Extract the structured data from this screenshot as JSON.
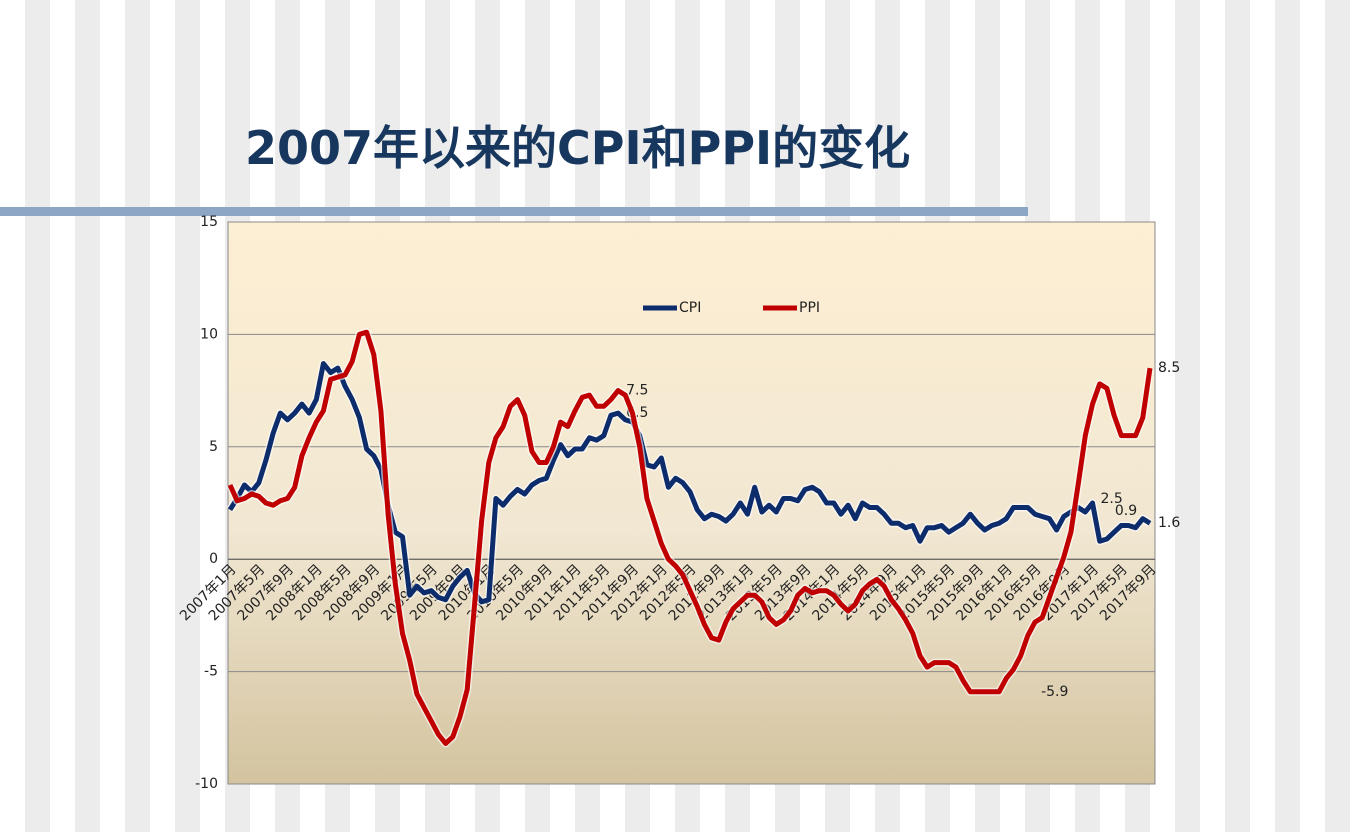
{
  "title": "2007年以来的CPI和PPI的变化",
  "chart_data": {
    "type": "line",
    "categories": [
      "2007年1月",
      null,
      null,
      null,
      "2007年5月",
      null,
      null,
      null,
      "2007年9月",
      null,
      null,
      null,
      "2008年1月",
      null,
      null,
      null,
      "2008年5月",
      null,
      null,
      null,
      "2008年9月",
      null,
      null,
      null,
      "2009年1月",
      null,
      null,
      null,
      "2009年5月",
      null,
      null,
      null,
      "2009年9月",
      null,
      null,
      null,
      "2010年1月",
      null,
      null,
      null,
      "2010年5月",
      null,
      null,
      null,
      "2010年9月",
      null,
      null,
      null,
      "2011年1月",
      null,
      null,
      null,
      "2011年5月",
      null,
      null,
      null,
      "2011年9月",
      null,
      null,
      null,
      "2012年1月",
      null,
      null,
      null,
      "2012年5月",
      null,
      null,
      null,
      "2012年9月",
      null,
      null,
      null,
      "2013年1月",
      null,
      null,
      null,
      "2013年5月",
      null,
      null,
      null,
      "2013年9月",
      null,
      null,
      null,
      "2014年1月",
      null,
      null,
      null,
      "2014年5月",
      null,
      null,
      null,
      "2014年9月",
      null,
      null,
      null,
      "2015年1月",
      null,
      null,
      null,
      "2015年5月",
      null,
      null,
      null,
      "2015年9月",
      null,
      null,
      null,
      "2016年1月",
      null,
      null,
      null,
      "2016年5月",
      null,
      null,
      null,
      "2016年9月",
      null,
      null,
      null,
      "2017年1月",
      null,
      null,
      null,
      "2017年5月",
      null,
      null,
      null,
      "2017年9月"
    ],
    "series": [
      {
        "name": "CPI",
        "color": "#0d2c6b",
        "labeled": [
          54,
          120,
          122,
          128
        ],
        "values": [
          2.2,
          2.7,
          3.3,
          3.0,
          3.4,
          4.4,
          5.6,
          6.5,
          6.2,
          6.5,
          6.9,
          6.5,
          7.1,
          8.7,
          8.3,
          8.5,
          7.7,
          7.1,
          6.3,
          4.9,
          4.6,
          4.0,
          2.4,
          1.2,
          1.0,
          -1.6,
          -1.2,
          -1.5,
          -1.4,
          -1.7,
          -1.8,
          -1.2,
          -0.8,
          -0.5,
          -1.5,
          -1.9,
          -1.8,
          2.7,
          2.4,
          2.8,
          3.1,
          2.9,
          3.3,
          3.5,
          3.6,
          4.4,
          5.1,
          4.6,
          4.9,
          4.9,
          5.4,
          5.3,
          5.5,
          6.4,
          6.5,
          6.2,
          6.1,
          5.5,
          4.2,
          4.1,
          4.5,
          3.2,
          3.6,
          3.4,
          3.0,
          2.2,
          1.8,
          2.0,
          1.9,
          1.7,
          2.0,
          2.5,
          2.0,
          3.2,
          2.1,
          2.4,
          2.1,
          2.7,
          2.7,
          2.6,
          3.1,
          3.2,
          3.0,
          2.5,
          2.5,
          2.0,
          2.4,
          1.8,
          2.5,
          2.3,
          2.3,
          2.0,
          1.6,
          1.6,
          1.4,
          1.5,
          0.8,
          1.4,
          1.4,
          1.5,
          1.2,
          1.4,
          1.6,
          2.0,
          1.6,
          1.3,
          1.5,
          1.6,
          1.8,
          2.3,
          2.3,
          2.3,
          2.0,
          1.9,
          1.8,
          1.3,
          1.9,
          2.1,
          2.3,
          2.1,
          2.5,
          0.8,
          0.9,
          1.2,
          1.5,
          1.5,
          1.4,
          1.8,
          1.6
        ]
      },
      {
        "name": "PPI",
        "color": "#c00000",
        "labeled": [
          54,
          107,
          128
        ],
        "values": [
          3.3,
          2.6,
          2.7,
          2.9,
          2.8,
          2.5,
          2.4,
          2.6,
          2.7,
          3.2,
          4.6,
          5.4,
          6.1,
          6.6,
          8.0,
          8.1,
          8.2,
          8.8,
          10.0,
          10.1,
          9.1,
          6.6,
          2.0,
          -1.1,
          -3.3,
          -4.5,
          -6.0,
          -6.6,
          -7.2,
          -7.8,
          -8.2,
          -7.9,
          -7.0,
          -5.8,
          -2.1,
          1.7,
          4.3,
          5.4,
          5.9,
          6.8,
          7.1,
          6.4,
          4.8,
          4.3,
          4.3,
          5.0,
          6.1,
          5.9,
          6.6,
          7.2,
          7.3,
          6.8,
          6.8,
          7.1,
          7.5,
          7.3,
          6.5,
          5.0,
          2.7,
          1.7,
          0.7,
          0.0,
          -0.3,
          -0.7,
          -1.4,
          -2.1,
          -2.9,
          -3.5,
          -3.6,
          -2.8,
          -2.2,
          -1.9,
          -1.6,
          -1.6,
          -1.9,
          -2.6,
          -2.9,
          -2.7,
          -2.3,
          -1.6,
          -1.3,
          -1.5,
          -1.4,
          -1.4,
          -1.6,
          -2.0,
          -2.3,
          -2.0,
          -1.4,
          -1.1,
          -0.9,
          -1.2,
          -1.8,
          -2.2,
          -2.7,
          -3.3,
          -4.3,
          -4.8,
          -4.6,
          -4.6,
          -4.6,
          -4.8,
          -5.4,
          -5.9,
          -5.9,
          -5.9,
          -5.9,
          -5.9,
          -5.3,
          -4.9,
          -4.3,
          -3.4,
          -2.8,
          -2.6,
          -1.7,
          -0.8,
          0.1,
          1.2,
          3.3,
          5.5,
          6.9,
          7.8,
          7.6,
          6.4,
          5.5,
          5.5,
          5.5,
          6.3,
          8.5
        ]
      }
    ],
    "ylim": [
      -10,
      15
    ],
    "yticks": [
      -10,
      -5,
      0,
      5,
      10,
      15
    ],
    "grid": true,
    "legend": "top"
  }
}
